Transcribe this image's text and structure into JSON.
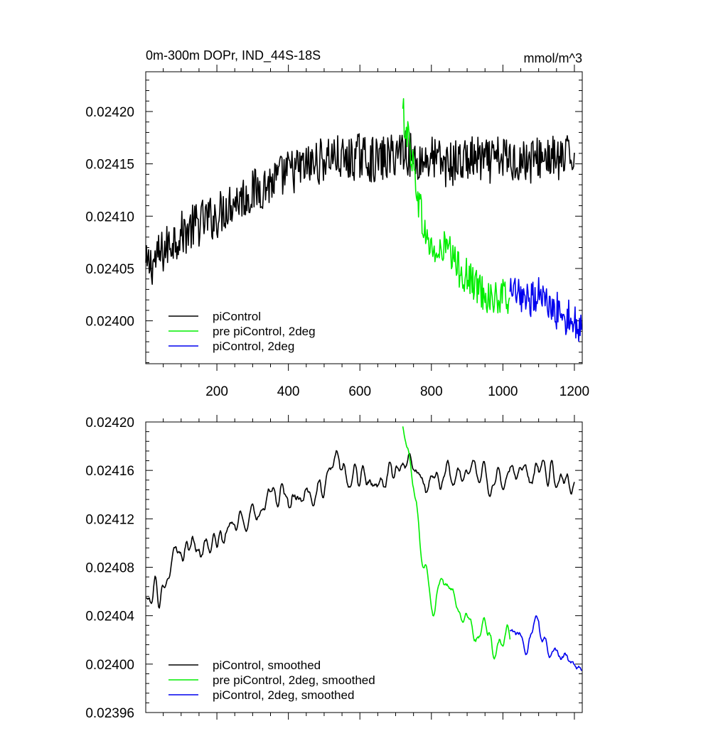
{
  "chart_data": [
    {
      "type": "line",
      "title": "0m-300m DOPr, IND_44S-18S",
      "units": "mmol/m^3",
      "xlabel": "",
      "ylabel": "",
      "xlim": [
        1,
        1222
      ],
      "ylim": [
        0.023959,
        0.024238
      ],
      "x_ticks": [
        200,
        400,
        600,
        800,
        1000,
        1200
      ],
      "x_tick_labels": [
        "200",
        "400",
        "600",
        "800",
        "1000",
        "1200"
      ],
      "y_ticks": [
        0.024,
        0.02405,
        0.0241,
        0.02415,
        0.0242
      ],
      "y_tick_labels": [
        "0.02400",
        "0.02405",
        "0.02410",
        "0.02415",
        "0.02420"
      ],
      "grid": false,
      "legend_position": "bottom-left",
      "legend": [
        "piControl",
        "pre piControl, 2deg",
        "piControl, 2deg"
      ],
      "series": [
        {
          "name": "piControl",
          "color": "#000000",
          "x": [
            1,
            40,
            80,
            120,
            160,
            200,
            240,
            280,
            320,
            360,
            400,
            440,
            480,
            520,
            560,
            600,
            640,
            680,
            720,
            760,
            800,
            840,
            880,
            920,
            960,
            1000,
            1040,
            1080,
            1120,
            1160,
            1200
          ],
          "y": [
            0.02405,
            0.024062,
            0.024079,
            0.024087,
            0.024095,
            0.0241,
            0.024114,
            0.024119,
            0.024127,
            0.024133,
            0.024142,
            0.024146,
            0.024151,
            0.024158,
            0.024152,
            0.024158,
            0.024153,
            0.024155,
            0.024166,
            0.024152,
            0.024156,
            0.024149,
            0.024152,
            0.024155,
            0.024151,
            0.024156,
            0.024153,
            0.024153,
            0.024158,
            0.024152,
            0.024159
          ]
        },
        {
          "name": "pre piControl, 2deg",
          "color": "#00ee00",
          "x": [
            720,
            740,
            760,
            780,
            800,
            820,
            840,
            860,
            880,
            900,
            920,
            940,
            960,
            980,
            1000,
            1020
          ],
          "y": [
            0.024198,
            0.024168,
            0.024125,
            0.024085,
            0.024069,
            0.024061,
            0.024073,
            0.024057,
            0.024049,
            0.024042,
            0.024035,
            0.024029,
            0.024024,
            0.024019,
            0.024022,
            0.024023
          ]
        },
        {
          "name": "piControl, 2deg",
          "color": "#0000ee",
          "x": [
            1020,
            1040,
            1060,
            1080,
            1100,
            1120,
            1140,
            1160,
            1180,
            1200,
            1220
          ],
          "y": [
            0.024023,
            0.024025,
            0.024014,
            0.024022,
            0.024029,
            0.024017,
            0.024008,
            0.024012,
            0.024003,
            0.023999,
            0.023995
          ]
        }
      ]
    },
    {
      "type": "line",
      "title": "",
      "xlabel": "",
      "ylabel": "",
      "xlim": [
        1,
        1222
      ],
      "ylim": [
        0.02396,
        0.0242
      ],
      "y_ticks": [
        0.02396,
        0.024,
        0.02404,
        0.02408,
        0.02412,
        0.02416,
        0.0242
      ],
      "y_tick_labels": [
        "0.02396",
        "0.02400",
        "0.02404",
        "0.02408",
        "0.02412",
        "0.02416",
        "0.02420"
      ],
      "grid": false,
      "legend_position": "bottom-left",
      "legend": [
        "piControl, smoothed",
        "pre piControl, 2deg, smoothed",
        "piControl, 2deg, smoothed"
      ],
      "series": [
        {
          "name": "piControl, smoothed",
          "color": "#000000",
          "x": [
            1,
            40,
            80,
            120,
            160,
            200,
            240,
            280,
            320,
            360,
            400,
            440,
            480,
            520,
            560,
            600,
            640,
            680,
            720,
            760,
            800,
            840,
            880,
            920,
            960,
            1000,
            1040,
            1080,
            1120,
            1160,
            1200
          ],
          "y": [
            0.02405,
            0.024064,
            0.024082,
            0.024098,
            0.024098,
            0.0241,
            0.024109,
            0.024124,
            0.024133,
            0.024135,
            0.024142,
            0.024143,
            0.024148,
            0.024163,
            0.024152,
            0.024155,
            0.024148,
            0.024153,
            0.024168,
            0.024152,
            0.024158,
            0.024152,
            0.024157,
            0.024155,
            0.024155,
            0.024158,
            0.024155,
            0.024156,
            0.024162,
            0.024155,
            0.024156
          ]
        },
        {
          "name": "pre piControl, 2deg, smoothed",
          "color": "#00ee00",
          "x": [
            720,
            740,
            760,
            780,
            800,
            820,
            840,
            860,
            880,
            900,
            920,
            940,
            960,
            980,
            1000,
            1020
          ],
          "y": [
            0.024195,
            0.02417,
            0.024125,
            0.024085,
            0.024052,
            0.02406,
            0.024072,
            0.024058,
            0.024045,
            0.024035,
            0.024027,
            0.02403,
            0.024022,
            0.024018,
            0.02402,
            0.02402
          ]
        },
        {
          "name": "piControl, 2deg, smoothed",
          "color": "#0000ee",
          "x": [
            1020,
            1040,
            1060,
            1080,
            1100,
            1120,
            1140,
            1160,
            1180,
            1200,
            1220
          ],
          "y": [
            0.02402,
            0.024025,
            0.024014,
            0.024022,
            0.024033,
            0.024018,
            0.024008,
            0.024008,
            0.024,
            0.023995,
            0.023995
          ]
        }
      ]
    }
  ]
}
